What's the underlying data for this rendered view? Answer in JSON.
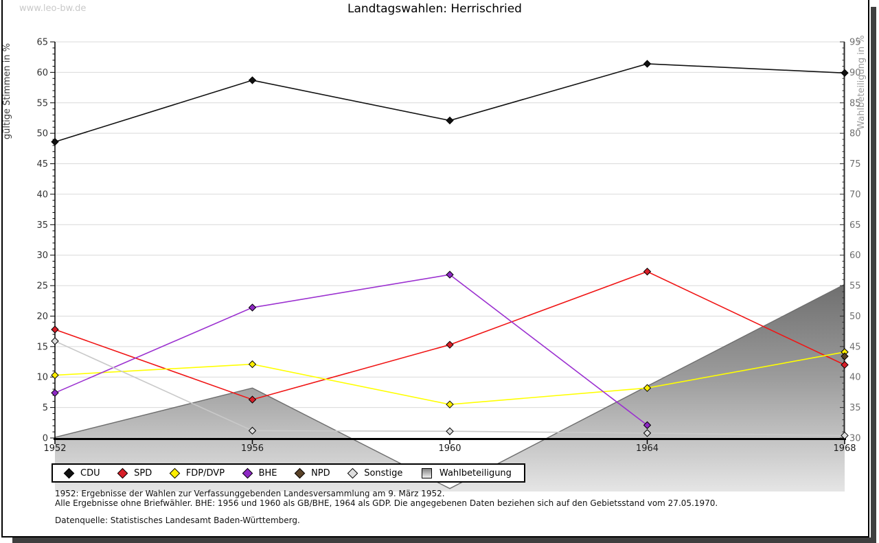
{
  "watermark": "www.leo-bw.de",
  "title": "Landtagswahlen: Herrischried",
  "chart_data": {
    "type": "line",
    "title": "Landtagswahlen: Herrischried",
    "x": [
      "1952",
      "1956",
      "1960",
      "1964",
      "1968"
    ],
    "left_axis": {
      "label": "gültige Stimmen in %",
      "min": 0,
      "max": 65,
      "tick_step": 5
    },
    "right_axis": {
      "label": "Wahlbeteiligung in %",
      "min": 30,
      "max": 95,
      "tick_step": 5
    },
    "grid": true,
    "legend_position": "bottom",
    "series": [
      {
        "name": "CDU",
        "axis": "left",
        "style": "line",
        "color": "#111111",
        "marker_fill": "#111111",
        "values": [
          48.6,
          58.7,
          52.1,
          61.4,
          59.9
        ]
      },
      {
        "name": "SPD",
        "axis": "left",
        "style": "line",
        "color": "#f01515",
        "marker_fill": "#d81e28",
        "values": [
          17.8,
          6.3,
          15.3,
          27.3,
          12.0
        ]
      },
      {
        "name": "FDP/DVP",
        "axis": "left",
        "style": "line",
        "color": "#ffff00",
        "marker_fill": "#ffee00",
        "values": [
          10.3,
          12.1,
          5.5,
          8.2,
          14.1
        ]
      },
      {
        "name": "BHE",
        "axis": "left",
        "style": "line",
        "color": "#9b30d0",
        "marker_fill": "#8d28c4",
        "values": [
          7.4,
          21.4,
          26.8,
          2.1,
          null
        ]
      },
      {
        "name": "NPD",
        "axis": "left",
        "style": "line",
        "color": "#5a4228",
        "marker_fill": "#5a4228",
        "values": [
          null,
          null,
          null,
          null,
          13.4
        ]
      },
      {
        "name": "Sonstige",
        "axis": "left",
        "style": "line",
        "color": "#c9c9c9",
        "marker_fill": "#dedede",
        "values": [
          15.9,
          1.2,
          1.1,
          0.8,
          0.4
        ]
      },
      {
        "name": "Wahlbeteiligung",
        "axis": "right",
        "style": "area",
        "color": "#6e6e6e",
        "values": [
          30.1,
          38.2,
          21.7,
          38.5,
          55.2
        ]
      }
    ]
  },
  "legend": {
    "items": [
      {
        "label": "CDU"
      },
      {
        "label": "SPD"
      },
      {
        "label": "FDP/DVP"
      },
      {
        "label": "BHE"
      },
      {
        "label": "NPD"
      },
      {
        "label": "Sonstige"
      },
      {
        "label": "Wahlbeteiligung"
      }
    ]
  },
  "footnotes": {
    "line1": "1952: Ergebnisse der Wahlen zur Verfassunggebenden Landesversammlung am 9. März 1952.",
    "line2": "Alle Ergebnisse ohne Briefwähler. BHE: 1956 und 1960 als GB/BHE, 1964 als GDP. Die angegebenen Daten beziehen sich auf den Gebietsstand vom 27.05.1970.",
    "source": "Datenquelle: Statistisches Landesamt Baden-Württemberg."
  }
}
